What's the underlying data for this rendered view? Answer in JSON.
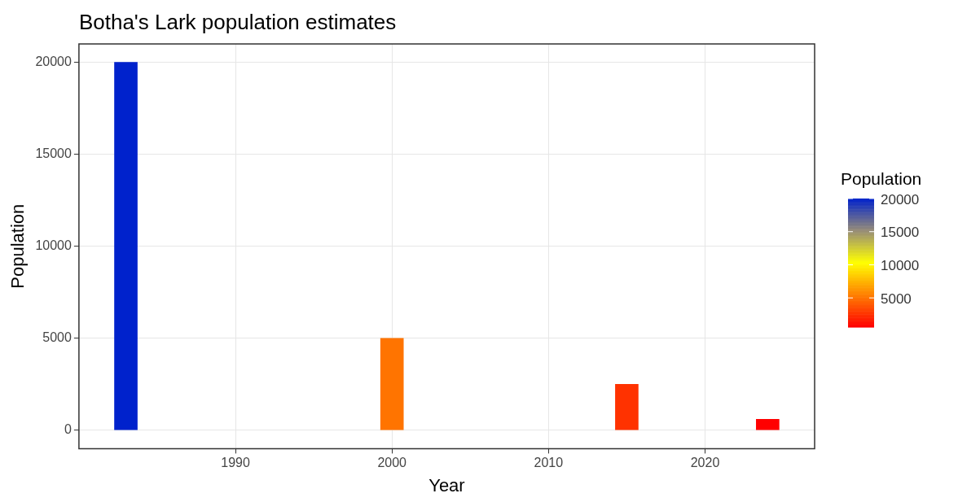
{
  "chart_data": {
    "type": "bar",
    "title": "Botha's Lark population estimates",
    "xlabel": "Year",
    "ylabel": "Population",
    "clabel": "Population",
    "x": [
      1983,
      2000,
      2015,
      2024
    ],
    "values": [
      20000,
      5000,
      2500,
      600
    ],
    "cvalues": [
      20000,
      5000,
      2500,
      600
    ],
    "clim": [
      600,
      20000
    ],
    "cticks": [
      5000,
      10000,
      15000,
      20000
    ],
    "xlim": [
      1980,
      2027
    ],
    "xticks": [
      1990,
      2000,
      2010,
      2020
    ],
    "ylim": [
      -1000,
      21000
    ],
    "yticks": [
      0,
      5000,
      10000,
      15000,
      20000
    ],
    "grid": true,
    "legend": false
  }
}
